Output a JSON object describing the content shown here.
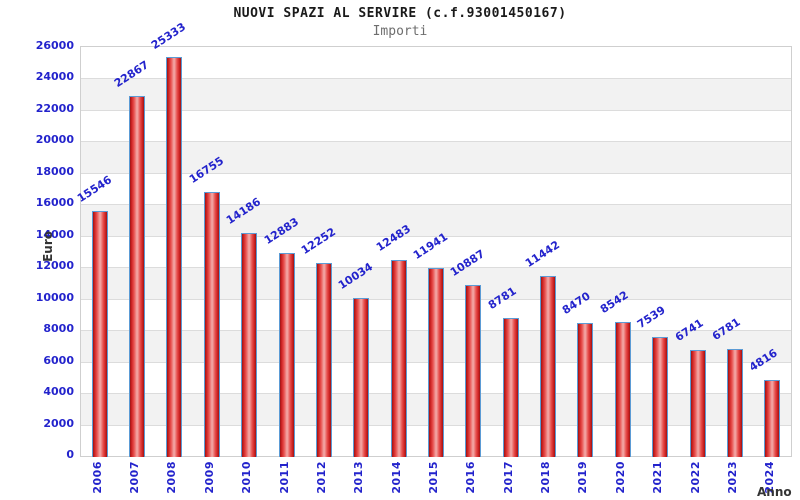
{
  "header": {
    "title": "NUOVI SPAZI AL SERVIRE (c.f.93001450167)",
    "subtitle": "Importi"
  },
  "chart_data": {
    "type": "bar",
    "title": "NUOVI SPAZI AL SERVIRE (c.f.93001450167)",
    "subtitle": "Importi",
    "xlabel": "Anno",
    "ylabel": "Euro",
    "categories": [
      "2006",
      "2007",
      "2008",
      "2009",
      "2010",
      "2011",
      "2012",
      "2013",
      "2014",
      "2015",
      "2016",
      "2017",
      "2018",
      "2019",
      "2020",
      "2021",
      "2022",
      "2023",
      "2024"
    ],
    "values": [
      15546,
      22867,
      25333,
      16755,
      14186,
      12883,
      12252,
      10034,
      12483,
      11941,
      10887,
      8781,
      11442,
      8470,
      8542,
      7539,
      6741,
      6781,
      4816
    ],
    "ylim": [
      0,
      26000
    ],
    "ytick_step": 2000,
    "yticks": [
      0,
      2000,
      4000,
      6000,
      8000,
      10000,
      12000,
      14000,
      16000,
      18000,
      20000,
      22000,
      24000,
      26000
    ],
    "legend": "none",
    "grid": "horizontal, alternating shaded bands every 2000",
    "colors": {
      "bar_edge": "#5b9bd5",
      "bar_dark": "#9c1414",
      "bar_light": "#f2a3a1",
      "tick_label": "#2323cc",
      "value_label": "#2323cc",
      "band_shade": "#f2f2f2",
      "gridline": "#dcdcdc",
      "plot_border": "#cfcfcf",
      "title": "#1a1a1a",
      "subtitle": "#6e6e6e",
      "axis_title": "#333333"
    }
  }
}
